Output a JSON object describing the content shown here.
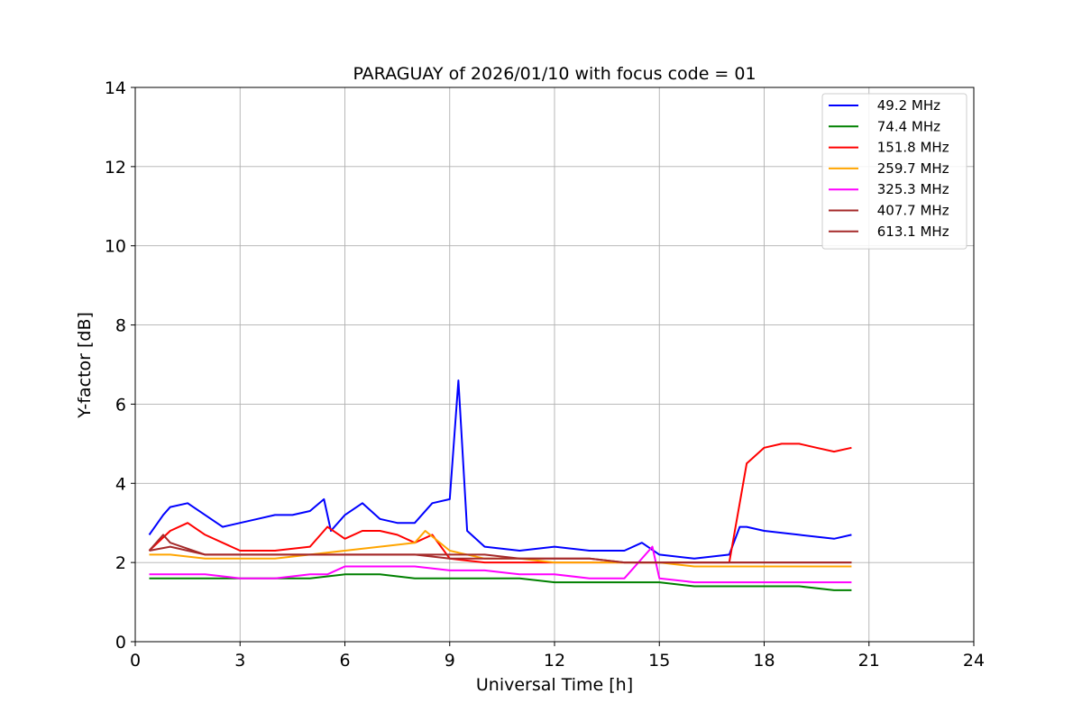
{
  "chart_data": {
    "type": "line",
    "title": "PARAGUAY of 2026/01/10 with focus code = 01",
    "xlabel": "Universal Time [h]",
    "ylabel": "Y-factor [dB]",
    "xlim": [
      0,
      24
    ],
    "ylim": [
      0,
      14
    ],
    "x_ticks": [
      "0",
      "3",
      "6",
      "9",
      "12",
      "15",
      "18",
      "21",
      "24"
    ],
    "y_ticks": [
      "0",
      "2",
      "4",
      "6",
      "8",
      "10",
      "12",
      "14"
    ],
    "grid": true,
    "legend_position": "top-right",
    "series": [
      {
        "name": " 49.2 MHz",
        "color": "#0000ff",
        "x": [
          0.4,
          0.8,
          1.0,
          1.5,
          2.0,
          2.5,
          3.0,
          3.5,
          4.0,
          4.5,
          5.0,
          5.4,
          5.6,
          6.0,
          6.5,
          7.0,
          7.5,
          8.0,
          8.5,
          9.0,
          9.25,
          9.5,
          10.0,
          11.0,
          12.0,
          13.0,
          14.0,
          14.5,
          15.0,
          16.0,
          17.0,
          17.3,
          17.5,
          18.0,
          19.0,
          20.0,
          20.5
        ],
        "y": [
          2.7,
          3.2,
          3.4,
          3.5,
          3.2,
          2.9,
          3.0,
          3.1,
          3.2,
          3.2,
          3.3,
          3.6,
          2.8,
          3.2,
          3.5,
          3.1,
          3.0,
          3.0,
          3.5,
          3.6,
          6.6,
          2.8,
          2.4,
          2.3,
          2.4,
          2.3,
          2.3,
          2.5,
          2.2,
          2.1,
          2.2,
          2.9,
          2.9,
          2.8,
          2.7,
          2.6,
          2.7
        ]
      },
      {
        "name": " 74.4 MHz",
        "color": "#008000",
        "x": [
          0.4,
          1.0,
          2.0,
          3.0,
          4.0,
          5.0,
          6.0,
          7.0,
          8.0,
          9.0,
          10.0,
          11.0,
          12.0,
          13.0,
          14.0,
          15.0,
          16.0,
          17.0,
          18.0,
          19.0,
          20.0,
          20.5
        ],
        "y": [
          1.6,
          1.6,
          1.6,
          1.6,
          1.6,
          1.6,
          1.7,
          1.7,
          1.6,
          1.6,
          1.6,
          1.6,
          1.5,
          1.5,
          1.5,
          1.5,
          1.4,
          1.4,
          1.4,
          1.4,
          1.3,
          1.3
        ]
      },
      {
        "name": " 151.8 MHz",
        "color": "#ff0000",
        "x": [
          0.4,
          1.0,
          1.5,
          2.0,
          3.0,
          4.0,
          5.0,
          5.5,
          6.0,
          6.5,
          7.0,
          7.5,
          8.0,
          8.5,
          9.0,
          10.0,
          11.0,
          12.0,
          13.0,
          14.0,
          15.0,
          16.0,
          17.0,
          17.3,
          17.5,
          18.0,
          18.5,
          19.0,
          19.5,
          20.0,
          20.5
        ],
        "y": [
          2.3,
          2.8,
          3.0,
          2.7,
          2.3,
          2.3,
          2.4,
          2.9,
          2.6,
          2.8,
          2.8,
          2.7,
          2.5,
          2.7,
          2.1,
          2.0,
          2.0,
          2.0,
          2.0,
          2.0,
          2.0,
          2.0,
          2.0,
          3.5,
          4.5,
          4.9,
          5.0,
          5.0,
          4.9,
          4.8,
          4.9
        ]
      },
      {
        "name": " 259.7 MHz",
        "color": "#ffa500",
        "x": [
          0.4,
          1.0,
          2.0,
          3.0,
          4.0,
          5.0,
          6.0,
          7.0,
          8.0,
          8.3,
          9.0,
          10.0,
          11.0,
          12.0,
          13.0,
          14.0,
          15.0,
          16.0,
          17.0,
          18.0,
          19.0,
          20.0,
          20.5
        ],
        "y": [
          2.2,
          2.2,
          2.1,
          2.1,
          2.1,
          2.2,
          2.3,
          2.4,
          2.5,
          2.8,
          2.3,
          2.1,
          2.1,
          2.0,
          2.0,
          2.0,
          2.0,
          1.9,
          1.9,
          1.9,
          1.9,
          1.9,
          1.9
        ]
      },
      {
        "name": " 325.3 MHz",
        "color": "#ff00ff",
        "x": [
          0.4,
          1.0,
          2.0,
          3.0,
          4.0,
          5.0,
          5.5,
          6.0,
          7.0,
          8.0,
          9.0,
          10.0,
          11.0,
          12.0,
          13.0,
          14.0,
          14.8,
          15.0,
          16.0,
          17.0,
          18.0,
          19.0,
          20.0,
          20.5
        ],
        "y": [
          1.7,
          1.7,
          1.7,
          1.6,
          1.6,
          1.7,
          1.7,
          1.9,
          1.9,
          1.9,
          1.8,
          1.8,
          1.7,
          1.7,
          1.6,
          1.6,
          2.4,
          1.6,
          1.5,
          1.5,
          1.5,
          1.5,
          1.5,
          1.5
        ]
      },
      {
        "name": " 407.7 MHz",
        "color": "#a52a2a",
        "x": [
          0.4,
          1.0,
          2.0,
          3.0,
          4.0,
          5.0,
          6.0,
          7.0,
          8.0,
          9.0,
          10.0,
          11.0,
          12.0,
          13.0,
          14.0,
          15.0,
          16.0,
          17.0,
          18.0,
          19.0,
          20.0,
          20.5
        ],
        "y": [
          2.3,
          2.4,
          2.2,
          2.2,
          2.2,
          2.2,
          2.2,
          2.2,
          2.2,
          2.1,
          2.1,
          2.1,
          2.1,
          2.1,
          2.0,
          2.0,
          2.0,
          2.0,
          2.0,
          2.0,
          2.0,
          2.0
        ]
      },
      {
        "name": " 613.1 MHz",
        "color": "#a52a2a",
        "x": [
          0.4,
          0.8,
          1.0,
          2.0,
          3.0,
          4.0,
          5.0,
          6.0,
          7.0,
          8.0,
          9.0,
          10.0,
          11.0,
          12.0,
          13.0,
          14.0,
          15.0,
          16.0,
          17.0,
          18.0,
          19.0,
          20.0,
          20.5
        ],
        "y": [
          2.3,
          2.7,
          2.5,
          2.2,
          2.2,
          2.2,
          2.2,
          2.2,
          2.2,
          2.2,
          2.2,
          2.2,
          2.1,
          2.1,
          2.1,
          2.0,
          2.0,
          2.0,
          2.0,
          2.0,
          2.0,
          2.0,
          2.0
        ]
      }
    ]
  }
}
